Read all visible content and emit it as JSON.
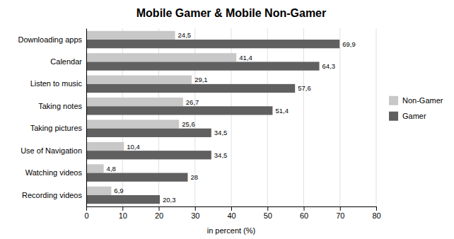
{
  "chart_data": {
    "type": "bar",
    "orientation": "horizontal",
    "title": "Mobile Gamer & Mobile Non-Gamer",
    "xlabel": "in percent (%)",
    "categories": [
      "Recording videos",
      "Watching videos",
      "Use of Navigation",
      "Taking pictures",
      "Taking notes",
      "Listen to music",
      "Calendar",
      "Downloading apps"
    ],
    "series": [
      {
        "name": "Non-Gamer",
        "color": "#c8c8c8",
        "values": [
          6.9,
          4.8,
          10.4,
          25.6,
          26.7,
          29.1,
          41.4,
          24.5
        ],
        "value_labels": [
          "6,9",
          "4,8",
          "10,4",
          "25,6",
          "26,7",
          "29,1",
          "41,4",
          "24,5"
        ]
      },
      {
        "name": "Gamer",
        "color": "#606060",
        "values": [
          20.3,
          28.0,
          34.5,
          34.5,
          51.4,
          57.6,
          64.3,
          69.9
        ],
        "value_labels": [
          "20,3",
          "28",
          "34,5",
          "34,5",
          "51,4",
          "57,6",
          "64,3",
          "69,9"
        ]
      }
    ],
    "xlim": [
      0,
      80
    ],
    "xticks": [
      0,
      10,
      20,
      30,
      40,
      50,
      60,
      70,
      80
    ],
    "grid": true,
    "legend": "right",
    "data_labels": true
  }
}
